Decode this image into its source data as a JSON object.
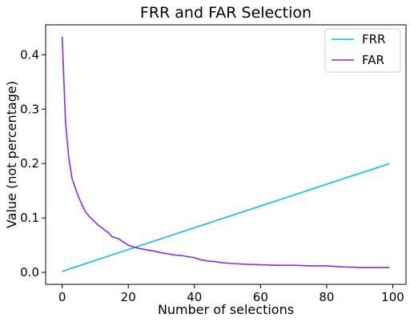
{
  "chart_data": {
    "type": "line",
    "title": "FRR and FAR Selection",
    "xlabel": "Number of selections",
    "ylabel": "Value (not percentage)",
    "xlim": [
      -5,
      104
    ],
    "ylim": [
      -0.022,
      0.455
    ],
    "xticks": [
      0,
      20,
      40,
      60,
      80,
      100
    ],
    "yticks": [
      0.0,
      0.1,
      0.2,
      0.3,
      0.4
    ],
    "xtick_labels": [
      "0",
      "20",
      "40",
      "60",
      "80",
      "100"
    ],
    "ytick_labels": [
      "0.0",
      "0.1",
      "0.2",
      "0.3",
      "0.4"
    ],
    "grid": false,
    "legend_position": "top-right",
    "series": [
      {
        "name": "FRR",
        "color": "#00bfef",
        "x": [
          0,
          99
        ],
        "y": [
          0.002,
          0.2
        ]
      },
      {
        "name": "FAR",
        "color": "#8a2be2",
        "x": [
          0,
          1,
          2,
          3,
          4,
          5,
          6,
          7,
          8,
          9,
          10,
          11,
          12,
          13,
          14,
          15,
          16,
          17,
          18,
          19,
          20,
          22,
          24,
          26,
          28,
          30,
          32,
          34,
          36,
          38,
          40,
          42,
          44,
          46,
          48,
          50,
          55,
          60,
          65,
          70,
          75,
          80,
          85,
          90,
          95,
          99
        ],
        "y": [
          0.433,
          0.278,
          0.21,
          0.172,
          0.155,
          0.138,
          0.124,
          0.112,
          0.104,
          0.098,
          0.092,
          0.086,
          0.082,
          0.077,
          0.073,
          0.066,
          0.064,
          0.062,
          0.058,
          0.054,
          0.05,
          0.046,
          0.043,
          0.041,
          0.039,
          0.036,
          0.034,
          0.032,
          0.031,
          0.029,
          0.027,
          0.023,
          0.021,
          0.02,
          0.018,
          0.017,
          0.015,
          0.014,
          0.013,
          0.013,
          0.012,
          0.012,
          0.01,
          0.009,
          0.009,
          0.009
        ]
      }
    ]
  }
}
